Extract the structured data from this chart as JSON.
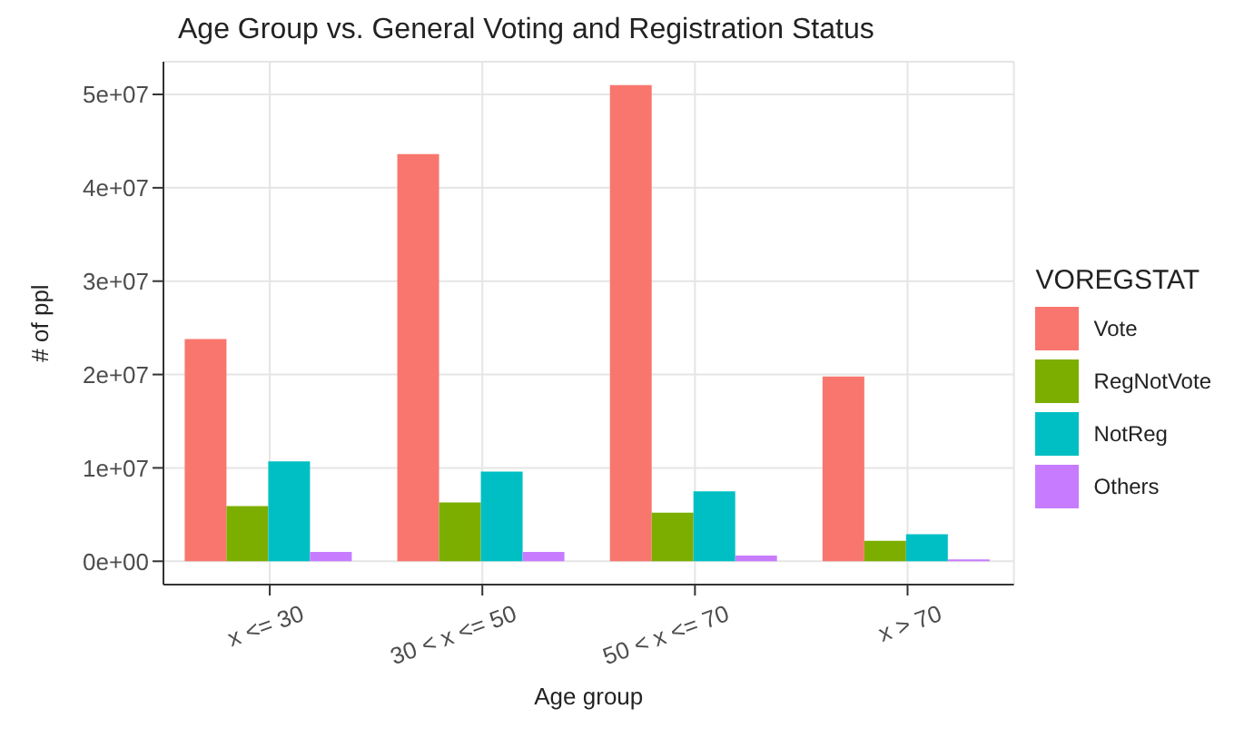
{
  "chart_data": {
    "type": "bar",
    "title": "Age Group vs. General Voting and Registration Status",
    "xlabel": "Age group",
    "ylabel": "# of ppl",
    "legend_title": "VOREGSTAT",
    "categories": [
      "x <= 30",
      "30 < x <= 50",
      "50 < x <= 70",
      "x > 70"
    ],
    "series": [
      {
        "name": "Vote",
        "color": "#f8766d",
        "values": [
          23800000,
          43600000,
          51000000,
          19800000
        ]
      },
      {
        "name": "RegNotVote",
        "color": "#7cae00",
        "values": [
          5900000,
          6300000,
          5200000,
          2200000
        ]
      },
      {
        "name": "NotReg",
        "color": "#00bfc4",
        "values": [
          10700000,
          9600000,
          7500000,
          2900000
        ]
      },
      {
        "name": "Others",
        "color": "#c77cff",
        "values": [
          1000000,
          1000000,
          600000,
          200000
        ]
      }
    ],
    "ylim": [
      -2500000,
      53500000
    ],
    "yticks": [
      {
        "value": 0,
        "label": "0e+00"
      },
      {
        "value": 10000000,
        "label": "1e+07"
      },
      {
        "value": 20000000,
        "label": "2e+07"
      },
      {
        "value": 30000000,
        "label": "3e+07"
      },
      {
        "value": 40000000,
        "label": "4e+07"
      },
      {
        "value": 50000000,
        "label": "5e+07"
      }
    ],
    "grid": true,
    "legend": "right"
  }
}
